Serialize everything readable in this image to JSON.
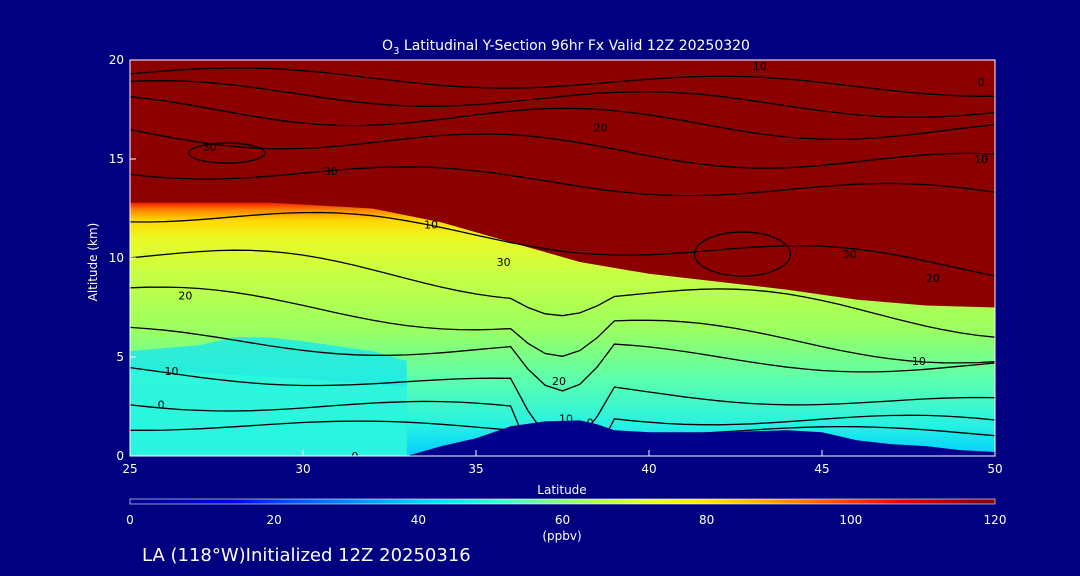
{
  "chart_data": {
    "type": "heatmap",
    "title_prefix": "O",
    "title_subscript": "3",
    "title_rest": " Latitudinal Y-Section 96hr  Fx Valid 12Z 20250320",
    "xlabel": "Latitude",
    "ylabel": "Altitude (km)",
    "xlim": [
      25,
      50
    ],
    "ylim": [
      0,
      20
    ],
    "x_ticks": [
      25,
      30,
      35,
      40,
      45,
      50
    ],
    "y_ticks": [
      0,
      5,
      10,
      15,
      20
    ],
    "colorbar": {
      "label": "(ppbv)",
      "range": [
        0,
        120
      ],
      "ticks": [
        0,
        20,
        40,
        60,
        80,
        100,
        120
      ],
      "stops": [
        {
          "v": 0,
          "c": "#00008c"
        },
        {
          "v": 14,
          "c": "#0000e6"
        },
        {
          "v": 22,
          "c": "#0050ff"
        },
        {
          "v": 32,
          "c": "#0096ff"
        },
        {
          "v": 42,
          "c": "#00dcff"
        },
        {
          "v": 52,
          "c": "#40ffd0"
        },
        {
          "v": 62,
          "c": "#9bff60"
        },
        {
          "v": 72,
          "c": "#e6ff30"
        },
        {
          "v": 80,
          "c": "#ffe600"
        },
        {
          "v": 88,
          "c": "#ffaa00"
        },
        {
          "v": 98,
          "c": "#ff5000"
        },
        {
          "v": 108,
          "c": "#e00000"
        },
        {
          "v": 118,
          "c": "#8c0000"
        }
      ]
    },
    "terrain": {
      "x": [
        25,
        33.0,
        34.0,
        35.0,
        36.0,
        37.0,
        38.0,
        38.5,
        39.0,
        40.0,
        42.0,
        44.0,
        45.0,
        46.0,
        47.0,
        48.0,
        49.0,
        50.0
      ],
      "y": [
        0,
        0,
        0.5,
        0.9,
        1.5,
        1.75,
        1.8,
        1.6,
        1.3,
        1.2,
        1.2,
        1.3,
        1.2,
        0.8,
        0.6,
        0.5,
        0.3,
        0.2
      ],
      "fill": "#00008c"
    },
    "tropopause_ppbv_120_level": {
      "x": [
        25,
        27,
        29,
        30,
        32,
        34,
        36,
        38,
        40,
        42,
        44,
        46,
        48,
        50
      ],
      "y": [
        12.8,
        12.8,
        12.8,
        12.7,
        12.5,
        11.8,
        10.8,
        9.8,
        9.2,
        8.8,
        8.4,
        7.9,
        7.6,
        7.5
      ]
    },
    "field_regions": [
      {
        "v": 45,
        "x": [
          25,
          27,
          28,
          29,
          30,
          32,
          33
        ],
        "y": [
          5.3,
          5.6,
          6.0,
          6.0,
          5.8,
          5.3,
          4.8
        ]
      },
      {
        "v": 50,
        "x": [
          25,
          27,
          30,
          33
        ],
        "y": [
          4.3,
          4.2,
          3.9,
          3.5
        ]
      }
    ],
    "contour_labels": [
      {
        "x": 43.2,
        "y": 19.7,
        "text": "10"
      },
      {
        "x": 49.6,
        "y": 18.9,
        "text": "0"
      },
      {
        "x": 38.6,
        "y": 16.6,
        "text": "20"
      },
      {
        "x": 27.3,
        "y": 15.6,
        "text": "30"
      },
      {
        "x": 30.8,
        "y": 14.4,
        "text": "30"
      },
      {
        "x": 49.6,
        "y": 15.0,
        "text": "10"
      },
      {
        "x": 33.7,
        "y": 11.7,
        "text": "10"
      },
      {
        "x": 35.8,
        "y": 9.8,
        "text": "30"
      },
      {
        "x": 45.8,
        "y": 10.2,
        "text": "30"
      },
      {
        "x": 48.2,
        "y": 9.0,
        "text": "20"
      },
      {
        "x": 26.6,
        "y": 8.1,
        "text": "20"
      },
      {
        "x": 26.2,
        "y": 4.3,
        "text": "10"
      },
      {
        "x": 37.4,
        "y": 3.8,
        "text": "20"
      },
      {
        "x": 47.8,
        "y": 4.8,
        "text": "10"
      },
      {
        "x": 25.9,
        "y": 2.6,
        "text": "0"
      },
      {
        "x": 37.6,
        "y": 1.9,
        "text": "10"
      },
      {
        "x": 38.3,
        "y": 1.7,
        "text": "0"
      },
      {
        "x": 31.5,
        "y": 0.0,
        "text": "0"
      }
    ]
  },
  "footer": {
    "run_label": "LA (118°W)Initialized 12Z 20250316"
  }
}
